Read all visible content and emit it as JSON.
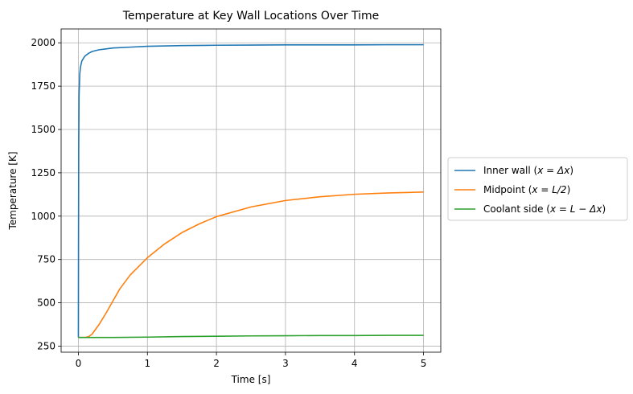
{
  "chart_data": {
    "type": "line",
    "title": "Temperature at Key Wall Locations Over Time",
    "xlabel": "Time [s]",
    "ylabel": "Temperature [K]",
    "xlim": [
      -0.25,
      5.25
    ],
    "ylim": [
      215,
      2080
    ],
    "xticks": [
      0,
      1,
      2,
      3,
      4,
      5
    ],
    "yticks": [
      250,
      500,
      750,
      1000,
      1250,
      1500,
      1750,
      2000
    ],
    "grid": true,
    "legend_position": "outside-right",
    "series": [
      {
        "name": "Inner wall",
        "name_math": "x = Δx",
        "color": "#1f77b4",
        "x": [
          0,
          0.002,
          0.005,
          0.01,
          0.02,
          0.03,
          0.05,
          0.08,
          0.1,
          0.15,
          0.2,
          0.3,
          0.5,
          0.75,
          1.0,
          1.5,
          2.0,
          2.5,
          3.0,
          3.5,
          4.0,
          4.5,
          5.0
        ],
        "y": [
          300,
          900,
          1400,
          1700,
          1820,
          1860,
          1895,
          1915,
          1925,
          1940,
          1950,
          1960,
          1970,
          1975,
          1980,
          1984,
          1986,
          1987,
          1988,
          1988,
          1988,
          1989,
          1989
        ]
      },
      {
        "name": "Midpoint",
        "name_math": "x = L/2",
        "color": "#ff7f0e",
        "x": [
          0,
          0.1,
          0.15,
          0.2,
          0.3,
          0.4,
          0.5,
          0.6,
          0.75,
          1.0,
          1.25,
          1.5,
          1.75,
          2.0,
          2.5,
          3.0,
          3.5,
          4.0,
          4.5,
          5.0
        ],
        "y": [
          300,
          300,
          305,
          320,
          375,
          440,
          510,
          580,
          660,
          760,
          840,
          905,
          955,
          997,
          1053,
          1090,
          1112,
          1126,
          1134,
          1139
        ]
      },
      {
        "name": "Coolant side",
        "name_math": "x = L − Δx",
        "color": "#2ca02c",
        "x": [
          0,
          0.5,
          1.0,
          1.5,
          2.0,
          2.5,
          3.0,
          3.5,
          4.0,
          4.5,
          5.0
        ],
        "y": [
          300,
          300,
          302,
          305,
          307,
          309,
          310,
          311,
          311,
          312,
          312
        ]
      }
    ]
  }
}
